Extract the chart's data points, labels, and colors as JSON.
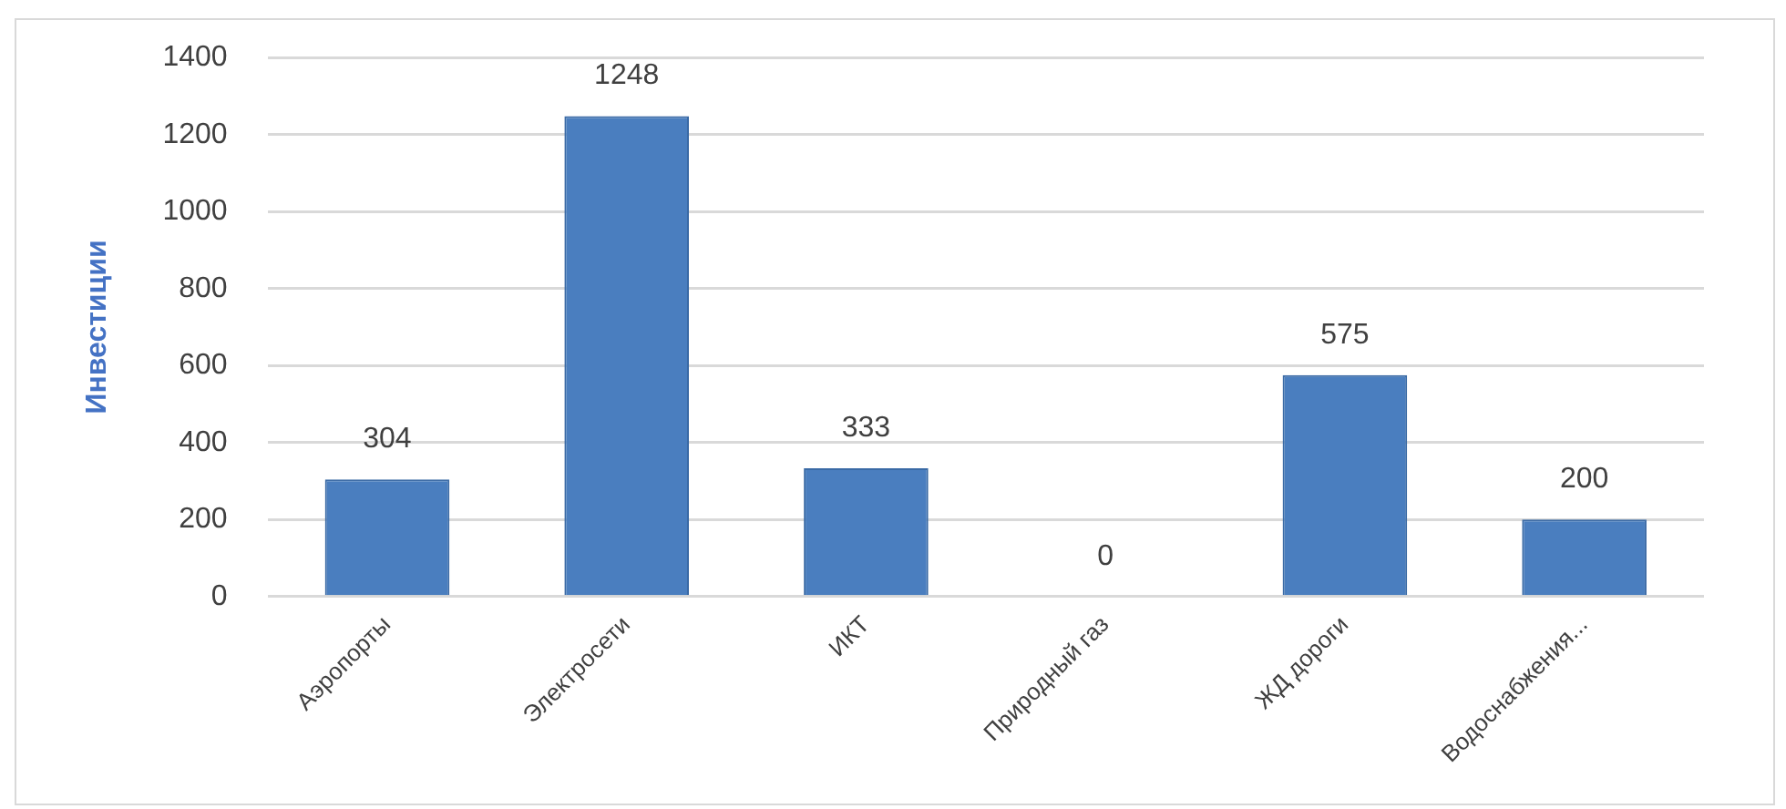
{
  "chart_data": {
    "type": "bar",
    "ylabel": "Инвестиции",
    "categories": [
      "Аэропорты",
      "Электросети",
      "ИКТ",
      "Природный газ",
      "ЖД дороги",
      "Водоснабжения..."
    ],
    "values": [
      304,
      1248,
      333,
      0,
      575,
      200
    ],
    "color": "#4a7ebf",
    "ylim": [
      0,
      1400
    ],
    "yticks": [
      0,
      200,
      400,
      600,
      800,
      1000,
      1200,
      1400
    ],
    "grid": "y",
    "data_labels": true,
    "legend": false
  }
}
